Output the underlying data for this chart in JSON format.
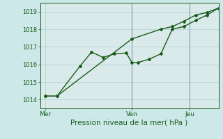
{
  "background_color": "#cce8e8",
  "plot_bg_color": "#daeaea",
  "grid_color": "#b8d8d8",
  "line_color": "#1a5c1a",
  "vline_color": "#7a9aaa",
  "xlabel": "Pression niveau de la mer( hPa )",
  "xtick_labels": [
    "Mer",
    "Ven",
    "Jeu"
  ],
  "xtick_positions": [
    0.0,
    0.5,
    0.833
  ],
  "ylim": [
    1013.5,
    1019.5
  ],
  "yticks": [
    1014,
    1015,
    1016,
    1017,
    1018,
    1019
  ],
  "xlim": [
    -0.03,
    1.0
  ],
  "line1_x": [
    0.0,
    0.067,
    0.2,
    0.267,
    0.333,
    0.4,
    0.467,
    0.5,
    0.533,
    0.6,
    0.667,
    0.733,
    0.8,
    0.867,
    0.933,
    1.0
  ],
  "line1_y": [
    1014.2,
    1014.2,
    1015.9,
    1016.7,
    1016.4,
    1016.6,
    1016.65,
    1016.1,
    1016.1,
    1016.3,
    1016.6,
    1018.0,
    1018.15,
    1018.5,
    1018.8,
    1019.2
  ],
  "line2_x": [
    0.0,
    0.067,
    0.5,
    0.667,
    0.733,
    0.8,
    0.867,
    0.933,
    1.0
  ],
  "line2_y": [
    1014.2,
    1014.2,
    1017.45,
    1018.0,
    1018.15,
    1018.45,
    1018.8,
    1018.95,
    1019.2
  ],
  "vline_positions": [
    0.5,
    0.833
  ]
}
